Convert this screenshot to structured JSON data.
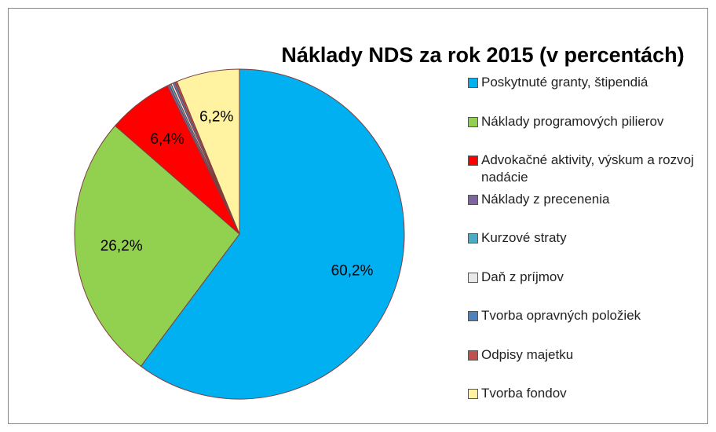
{
  "chart_data": {
    "type": "pie",
    "title": "Náklady NDS za rok 2015 (v percentách)",
    "categories": [
      "Poskytnuté granty, štipendiá",
      "Náklady programových pilierov",
      "Advokačné aktivity, výskum a rozvoj nadácie",
      "Náklady z precenenia",
      "Kurzové straty",
      "Daň z príjmov",
      "Tvorba opravných položiek",
      "Odpisy majetku",
      "Tvorba fondov"
    ],
    "values": [
      60.2,
      26.2,
      6.4,
      0.2,
      0.2,
      0.2,
      0.2,
      0.2,
      6.2
    ],
    "value_labels": [
      "60,2%",
      "26,2%",
      "6,4%",
      null,
      null,
      null,
      null,
      null,
      "6,2%"
    ],
    "colors": [
      "#00b0f0",
      "#92d050",
      "#ff0000",
      "#8064a2",
      "#4bacc6",
      "#e8e8e8",
      "#4f81bd",
      "#c0504d",
      "#fff2a1"
    ],
    "legend": "right"
  }
}
